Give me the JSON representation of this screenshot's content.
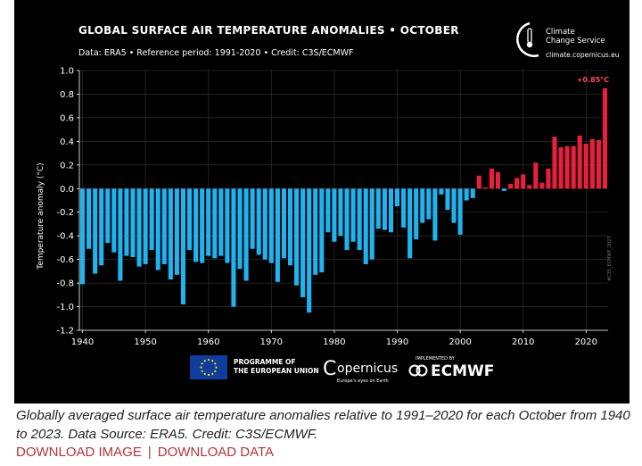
{
  "header": {
    "title": "GLOBAL SURFACE AIR TEMPERATURE ANOMALIES • OCTOBER",
    "subtitle": "Data: ERA5 • Reference period: 1991-2020 • Credit: C3S/ECMWF"
  },
  "brand": {
    "line1": "Climate",
    "line2": "Change Service",
    "url": "climate.copernicus.eu"
  },
  "footer_logos": {
    "eu_line1": "PROGRAMME OF",
    "eu_line2": "THE EUROPEAN UNION",
    "copernicus": "opernicus",
    "copernicus_c": "C",
    "copernicus_sub": "Europe's eyes on Earth",
    "ecmwf_small": "IMPLEMENTED BY",
    "ecmwf": "ECMWF"
  },
  "watermark": "#C3S_ECMWF_2023",
  "caption": "Globally averaged surface air temperature anomalies relative to 1991–2020 for each October from 1940 to 2023. Data Source: ERA5. Credit: C3S/ECMWF.",
  "links": {
    "download_image": "DOWNLOAD IMAGE",
    "separator": "|",
    "download_data": "DOWNLOAD DATA"
  },
  "colors": {
    "negative": "#1fb3f0",
    "positive": "#e8203d",
    "background": "#000000",
    "label": "#ff4d5e"
  },
  "chart_data": {
    "type": "bar",
    "title": "GLOBAL SURFACE AIR TEMPERATURE ANOMALIES • OCTOBER",
    "xlabel": "",
    "ylabel": "Temperature anomaly (°C)",
    "ylim": [
      -1.2,
      1.0
    ],
    "yticks": [
      "1.0",
      "0.8",
      "0.6",
      "0.4",
      "0.2",
      "0.0",
      "-0.2",
      "-0.4",
      "-0.6",
      "-0.8",
      "-1.0",
      "-1.2"
    ],
    "xticks": [
      "1940",
      "1950",
      "1960",
      "1970",
      "1980",
      "1990",
      "2000",
      "2010",
      "2020"
    ],
    "x_start": 1940,
    "x_end": 2023,
    "years": [
      1940,
      1941,
      1942,
      1943,
      1944,
      1945,
      1946,
      1947,
      1948,
      1949,
      1950,
      1951,
      1952,
      1953,
      1954,
      1955,
      1956,
      1957,
      1958,
      1959,
      1960,
      1961,
      1962,
      1963,
      1964,
      1965,
      1966,
      1967,
      1968,
      1969,
      1970,
      1971,
      1972,
      1973,
      1974,
      1975,
      1976,
      1977,
      1978,
      1979,
      1980,
      1981,
      1982,
      1983,
      1984,
      1985,
      1986,
      1987,
      1988,
      1989,
      1990,
      1991,
      1992,
      1993,
      1994,
      1995,
      1996,
      1997,
      1998,
      1999,
      2000,
      2001,
      2002,
      2003,
      2004,
      2005,
      2006,
      2007,
      2008,
      2009,
      2010,
      2011,
      2012,
      2013,
      2014,
      2015,
      2016,
      2017,
      2018,
      2019,
      2020,
      2021,
      2022,
      2023
    ],
    "values": [
      -0.81,
      -0.51,
      -0.72,
      -0.65,
      -0.46,
      -0.54,
      -0.78,
      -0.57,
      -0.58,
      -0.66,
      -0.64,
      -0.52,
      -0.69,
      -0.64,
      -0.77,
      -0.73,
      -0.98,
      -0.52,
      -0.62,
      -0.63,
      -0.57,
      -0.59,
      -0.57,
      -0.63,
      -1.0,
      -0.68,
      -0.78,
      -0.51,
      -0.56,
      -0.6,
      -0.63,
      -0.79,
      -0.59,
      -0.65,
      -0.82,
      -0.92,
      -1.05,
      -0.73,
      -0.71,
      -0.37,
      -0.45,
      -0.4,
      -0.52,
      -0.45,
      -0.52,
      -0.64,
      -0.6,
      -0.34,
      -0.35,
      -0.37,
      -0.15,
      -0.33,
      -0.59,
      -0.43,
      -0.29,
      -0.26,
      -0.44,
      -0.05,
      -0.18,
      -0.29,
      -0.39,
      -0.1,
      -0.08,
      0.11,
      0.01,
      0.17,
      0.14,
      -0.02,
      0.04,
      0.09,
      0.12,
      0.03,
      0.22,
      0.05,
      0.17,
      0.44,
      0.35,
      0.36,
      0.36,
      0.45,
      0.38,
      0.42,
      0.41,
      0.85
    ],
    "annotation": "+0.85°C"
  }
}
